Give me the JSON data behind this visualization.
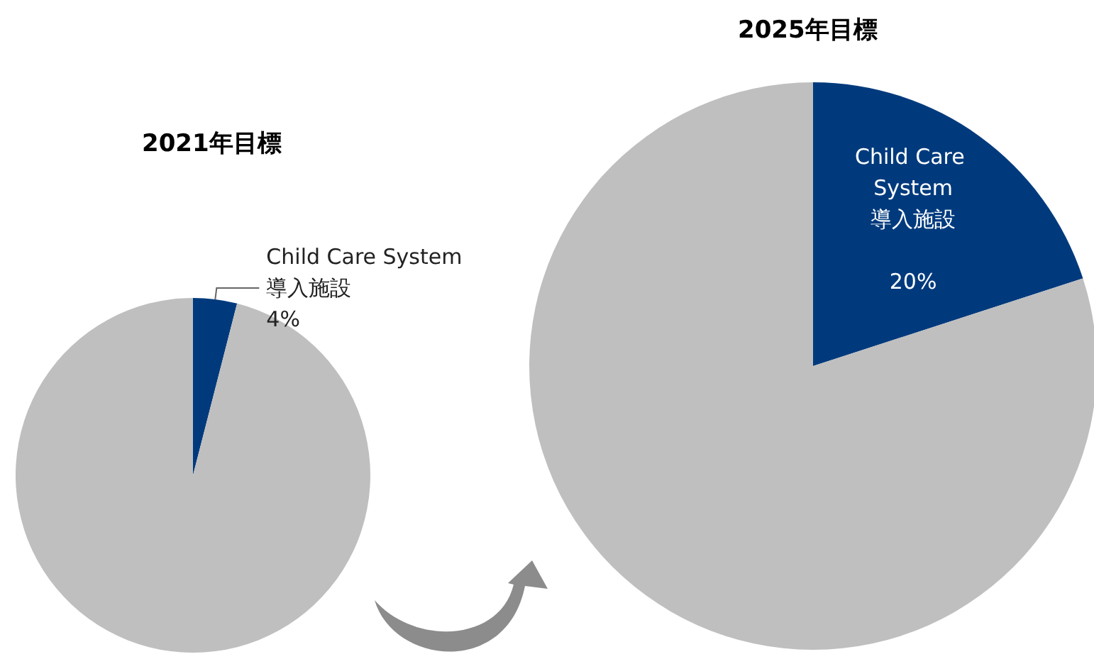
{
  "chart_data": [
    {
      "type": "pie",
      "title": "2021年目標",
      "categories": [
        "Child Care System 導入施設",
        null
      ],
      "values": [
        4,
        96
      ],
      "colors": [
        "#003a7d",
        "#bfbfbf"
      ],
      "value_labels": [
        "4%",
        null
      ]
    },
    {
      "type": "pie",
      "title": "2025年目標",
      "categories": [
        "Child Care System 導入施設",
        null
      ],
      "values": [
        20,
        80
      ],
      "colors": [
        "#003a7d",
        "#bfbfbf"
      ],
      "value_labels": [
        "20%",
        null
      ]
    }
  ]
}
